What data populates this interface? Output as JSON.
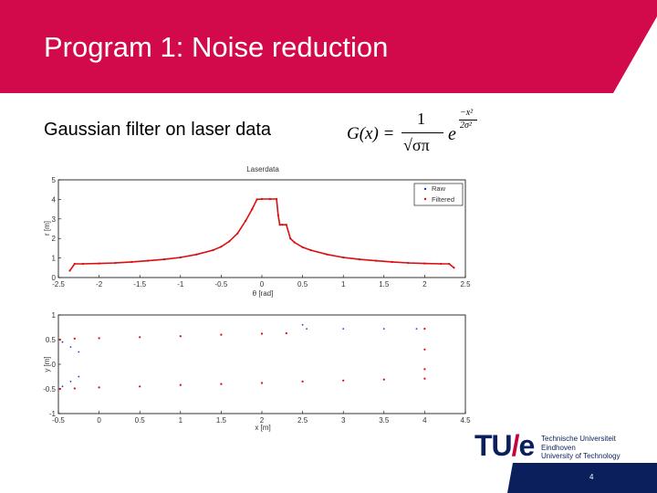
{
  "slide": {
    "title": "Program 1: Noise reduction",
    "subtitle": "Gaussian filter on laser data",
    "page_number": "4"
  },
  "formula": {
    "lhs": "G(x) =",
    "numerator": "1",
    "denominator": "√σπ",
    "exp_base": "e",
    "exp_numerator": "−x²",
    "exp_denominator": "2σ²"
  },
  "logo": {
    "mark_t": "TU",
    "mark_slash": "/",
    "mark_e": "e",
    "lines": [
      "Technische Universiteit",
      "Eindhoven",
      "University of Technology"
    ]
  },
  "colors": {
    "header": "#d20a4b",
    "raw": "#1e3cc8",
    "filtered": "#dc0f0f",
    "logo_blue": "#0a1f5c",
    "footer": "#0a1f5c"
  },
  "chart_data": [
    {
      "type": "line",
      "title": "Laserdata",
      "xlabel": "θ [rad]",
      "ylabel": "r [m]",
      "xlim": [
        -2.5,
        2.5
      ],
      "ylim": [
        0,
        5
      ],
      "xticks": [
        "-2.5",
        "-2",
        "-1.5",
        "-1",
        "-0.5",
        "0",
        "0.5",
        "1",
        "1.5",
        "2",
        "2.5"
      ],
      "yticks": [
        "0",
        "1",
        "2",
        "3",
        "4",
        "5"
      ],
      "legend": "top-right",
      "series": [
        {
          "name": "Raw",
          "x": [
            -2.36,
            -2.3,
            -2.2,
            -2.0,
            -1.8,
            -1.6,
            -1.4,
            -1.2,
            -1.0,
            -0.8,
            -0.6,
            -0.5,
            -0.4,
            -0.3,
            -0.2,
            -0.12,
            -0.06,
            0.0,
            0.1,
            0.18,
            0.2,
            0.22,
            0.25,
            0.3,
            0.35,
            0.4,
            0.5,
            0.6,
            0.8,
            1.0,
            1.2,
            1.4,
            1.6,
            1.8,
            2.0,
            2.2,
            2.3,
            2.36
          ],
          "y": [
            0.35,
            0.7,
            0.7,
            0.72,
            0.75,
            0.8,
            0.86,
            0.93,
            1.03,
            1.18,
            1.4,
            1.58,
            1.85,
            2.25,
            2.9,
            3.5,
            4.0,
            4.02,
            4.02,
            4.02,
            3.2,
            2.7,
            2.7,
            2.7,
            2.0,
            1.8,
            1.55,
            1.4,
            1.18,
            1.03,
            0.93,
            0.86,
            0.8,
            0.75,
            0.72,
            0.7,
            0.7,
            0.5
          ]
        },
        {
          "name": "Filtered",
          "x": [
            -2.36,
            -2.3,
            -2.2,
            -2.0,
            -1.8,
            -1.6,
            -1.4,
            -1.2,
            -1.0,
            -0.8,
            -0.6,
            -0.5,
            -0.4,
            -0.3,
            -0.2,
            -0.12,
            -0.06,
            0.0,
            0.1,
            0.18,
            0.2,
            0.22,
            0.25,
            0.3,
            0.35,
            0.4,
            0.5,
            0.6,
            0.8,
            1.0,
            1.2,
            1.4,
            1.6,
            1.8,
            2.0,
            2.2,
            2.3,
            2.36
          ],
          "y": [
            0.35,
            0.7,
            0.7,
            0.72,
            0.75,
            0.8,
            0.86,
            0.93,
            1.03,
            1.18,
            1.4,
            1.58,
            1.85,
            2.25,
            2.9,
            3.5,
            4.0,
            4.02,
            4.02,
            4.02,
            3.2,
            2.7,
            2.7,
            2.7,
            2.0,
            1.8,
            1.55,
            1.4,
            1.18,
            1.03,
            0.93,
            0.86,
            0.8,
            0.75,
            0.72,
            0.7,
            0.7,
            0.5
          ]
        }
      ]
    },
    {
      "type": "scatter",
      "title": "",
      "xlabel": "x [m]",
      "ylabel": "y [m]",
      "xlim": [
        -0.5,
        4.5
      ],
      "ylim": [
        -1,
        1
      ],
      "xticks": [
        "-0.5",
        "0",
        "0.5",
        "1",
        "1.5",
        "2",
        "2.5",
        "3",
        "3.5",
        "4",
        "4.5"
      ],
      "yticks": [
        "-1",
        "-0.5",
        "0",
        "0.5",
        "1"
      ],
      "series": [
        {
          "name": "Raw",
          "x": [
            -0.48,
            -0.3,
            0.0,
            0.5,
            1.0,
            1.5,
            2.0,
            2.3,
            -0.48,
            -0.3,
            0.0,
            0.5,
            1.0,
            1.5,
            2.0,
            2.5,
            3.0,
            3.5,
            4.0,
            2.5,
            2.55,
            3.0,
            3.5,
            3.9,
            4.0,
            4.0,
            4.0,
            4.0,
            -0.45,
            -0.35,
            -0.25,
            -0.45,
            -0.35,
            -0.25
          ],
          "y": [
            0.5,
            0.52,
            0.53,
            0.55,
            0.57,
            0.6,
            0.62,
            0.63,
            -0.5,
            -0.49,
            -0.47,
            -0.45,
            -0.42,
            -0.4,
            -0.38,
            -0.35,
            -0.33,
            -0.31,
            -0.29,
            0.8,
            0.72,
            0.72,
            0.72,
            0.72,
            0.72,
            0.3,
            -0.1,
            -0.29,
            0.45,
            0.35,
            0.25,
            -0.45,
            -0.35,
            -0.25
          ]
        },
        {
          "name": "Filtered",
          "x": [
            -0.48,
            -0.3,
            0.0,
            0.5,
            1.0,
            1.5,
            2.0,
            2.3,
            -0.48,
            -0.3,
            0.0,
            0.5,
            1.0,
            1.5,
            2.0,
            2.5,
            3.0,
            3.5,
            4.0,
            4.0,
            4.0,
            4.0
          ],
          "y": [
            0.5,
            0.52,
            0.53,
            0.55,
            0.57,
            0.6,
            0.62,
            0.63,
            -0.5,
            -0.49,
            -0.47,
            -0.45,
            -0.42,
            -0.4,
            -0.38,
            -0.35,
            -0.33,
            -0.31,
            -0.29,
            0.72,
            0.3,
            -0.1
          ]
        }
      ]
    }
  ]
}
